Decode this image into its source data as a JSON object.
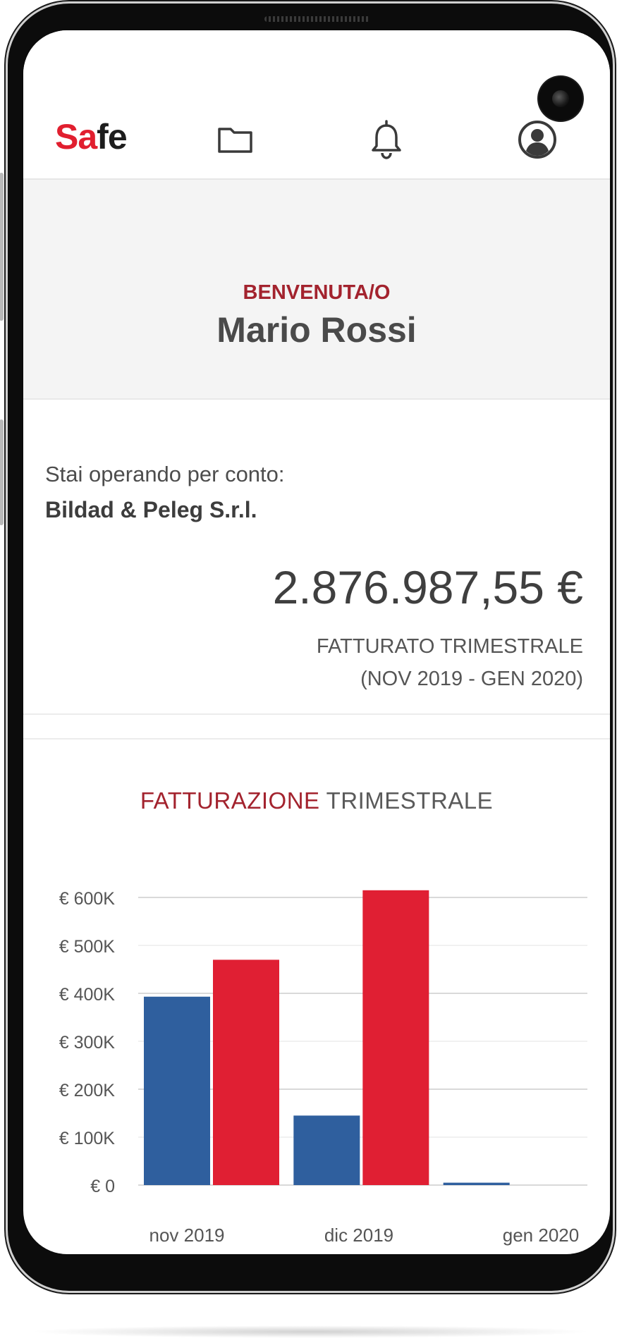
{
  "header": {
    "logo_part1": "Sa",
    "logo_part2": "fe",
    "icons": [
      "folder-icon",
      "bell-icon",
      "user-account-icon"
    ]
  },
  "welcome": {
    "label": "BENVENUTA/O",
    "name": "Mario Rossi"
  },
  "account": {
    "operating_label": "Stai operando per conto:",
    "company": "Bildad & Peleg S.r.l.",
    "amount": "2.876.987,55 €",
    "amount_label": "FATTURATO TRIMESTRALE",
    "period": "(NOV 2019 - GEN 2020)"
  },
  "colors": {
    "brand_red": "#e11f2f",
    "dark_red": "#a3232e",
    "series_blue": "#2f5f9e",
    "series_red": "#e01f33"
  },
  "chart_data": {
    "type": "bar",
    "title_part1": "FATTURAZIONE",
    "title_part2": "TRIMESTRALE",
    "categories": [
      "nov 2019",
      "dic 2019",
      "gen 2020"
    ],
    "series": [
      {
        "values": [
          393000,
          145000,
          5000
        ],
        "color": "#2f5f9e"
      },
      {
        "values": [
          470000,
          615000,
          0
        ],
        "color": "#e01f33"
      }
    ],
    "yticks": [
      "€ 600K",
      "€ 500K",
      "€ 400K",
      "€ 300K",
      "€ 200K",
      "€ 100K",
      "€ 0"
    ],
    "ylim": [
      0,
      600000
    ],
    "grid": true
  }
}
